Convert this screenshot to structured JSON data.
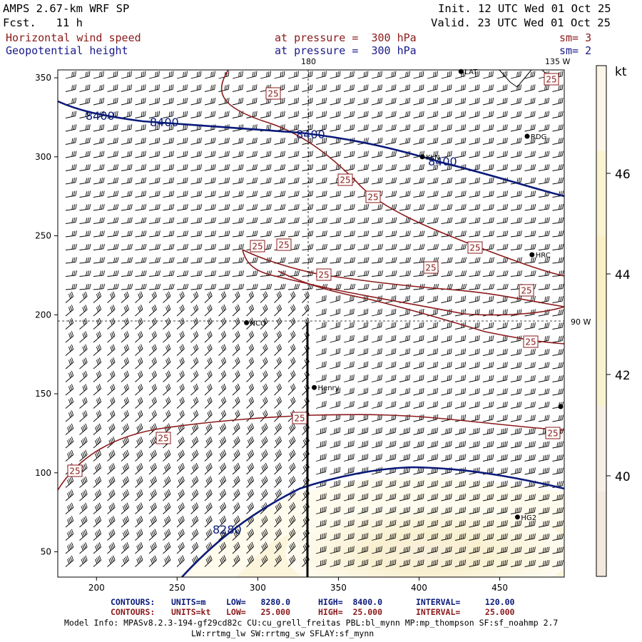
{
  "header": {
    "model": "AMPS 2.67-km WRF SP",
    "forecast": "Fcst.   11 h",
    "init": "Init. 12 UTC Wed 01 Oct 25",
    "valid": "Valid. 23 UTC Wed 01 Oct 25",
    "field1": "Horizontal wind speed",
    "field1_level": "at pressure =  300 hPa",
    "field1_sm": "sm= 3",
    "field2": "Geopotential height",
    "field2_level": "at pressure =  300 hPa",
    "field2_sm": "sm= 2"
  },
  "map": {
    "lon_labels": {
      "top_180": "180",
      "top_135w": "135 W",
      "right_90w": "90 W"
    },
    "x_ticks": [
      "200",
      "250",
      "300",
      "350",
      "400",
      "450"
    ],
    "y_ticks": [
      "50",
      "100",
      "150",
      "200",
      "250",
      "300",
      "350"
    ],
    "stations": [
      {
        "name": "RDG",
        "x": 467,
        "y": 313
      },
      {
        "name": "KLN",
        "x": 402,
        "y": 300
      },
      {
        "name": "HRC",
        "x": 470,
        "y": 238
      },
      {
        "name": "NCO",
        "x": 293,
        "y": 195
      },
      {
        "name": "Henry",
        "x": 335,
        "y": 154
      },
      {
        "name": "HG2",
        "x": 461,
        "y": 72
      },
      {
        "name": "LAT",
        "x": 426,
        "y": 354
      }
    ],
    "height_contour_labels": [
      "8400",
      "8400",
      "8400",
      "8400",
      "8280"
    ],
    "speed_contour_label": "25",
    "colorbar": {
      "unit": "kt",
      "labels": [
        "46",
        "44",
        "42",
        "40"
      ],
      "colors": [
        "#fdf6e8",
        "#fcf3d2",
        "#fbf0c4",
        "#f9f2d0",
        "#f7efe6",
        "#f3e9de"
      ]
    }
  },
  "footer": {
    "row1": {
      "label": "CONTOURS:",
      "units": "UNITS=m",
      "low": "LOW=   8280.0",
      "high": "HIGH=  8400.0",
      "interval": "INTERVAL=     120.00"
    },
    "row2": {
      "label": "CONTOURS:",
      "units": "UNITS=kt",
      "low": "LOW=   25.000",
      "high": "HIGH=  25.000",
      "interval": "INTERVAL=     25.000"
    },
    "model_info": "Model Info: MPASv8.2.3-194-gf29cd82c CU:cu_grell_freitas PBL:bl_mynn MP:mp_thompson SF:sf_noahmp 2.7",
    "model_info2": "LW:rrtmg_lw SW:rrtmg_sw SFLAY:sf_mynn"
  }
}
